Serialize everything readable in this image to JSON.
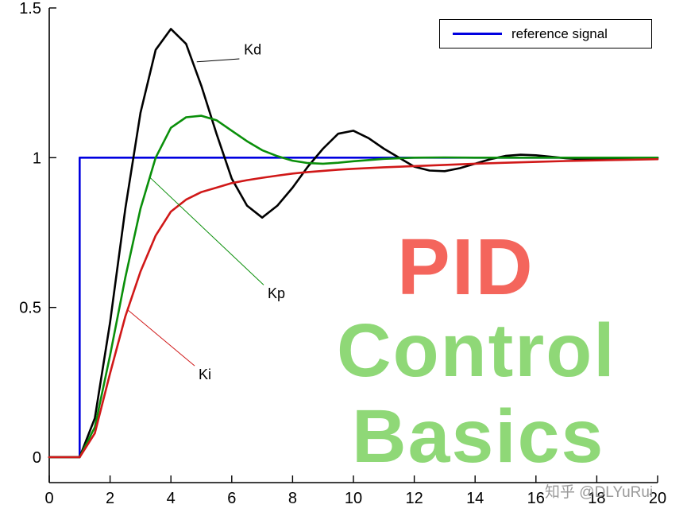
{
  "legend": {
    "label": "reference signal",
    "line_color": "#0000e0"
  },
  "overlay": {
    "line1": "PID",
    "line2": "Control",
    "line3": "Basics",
    "pid_color": "#f4655c",
    "green_color": "#8fd877"
  },
  "watermark": "知乎 @DLYuRui",
  "chart_data": {
    "type": "line",
    "title": "",
    "xlabel": "",
    "ylabel": "",
    "xlim": [
      0,
      20
    ],
    "ylim": [
      -0.085,
      1.5
    ],
    "x_ticks": [
      0,
      2,
      4,
      6,
      8,
      10,
      12,
      14,
      16,
      18,
      20
    ],
    "y_ticks": [
      0,
      0.5,
      1,
      1.5
    ],
    "grid": false,
    "legend_position": "top-right",
    "series": [
      {
        "name": "reference-signal",
        "color": "#0000e0",
        "width": 2.6,
        "points": [
          [
            0,
            0
          ],
          [
            1,
            0
          ],
          [
            1,
            1
          ],
          [
            20,
            1
          ]
        ]
      },
      {
        "name": "Kd",
        "color": "#000000",
        "width": 2.6,
        "points": [
          [
            0,
            0
          ],
          [
            1,
            0
          ],
          [
            1.5,
            0.13
          ],
          [
            2,
            0.45
          ],
          [
            2.5,
            0.83
          ],
          [
            3,
            1.15
          ],
          [
            3.5,
            1.36
          ],
          [
            4,
            1.43
          ],
          [
            4.5,
            1.38
          ],
          [
            5,
            1.24
          ],
          [
            5.5,
            1.08
          ],
          [
            6,
            0.93
          ],
          [
            6.5,
            0.84
          ],
          [
            7,
            0.8
          ],
          [
            7.5,
            0.84
          ],
          [
            8,
            0.9
          ],
          [
            8.5,
            0.97
          ],
          [
            9,
            1.03
          ],
          [
            9.5,
            1.08
          ],
          [
            10,
            1.09
          ],
          [
            10.5,
            1.065
          ],
          [
            11,
            1.03
          ],
          [
            11.5,
            1.0
          ],
          [
            12,
            0.97
          ],
          [
            12.5,
            0.957
          ],
          [
            13,
            0.955
          ],
          [
            13.5,
            0.965
          ],
          [
            14,
            0.98
          ],
          [
            14.5,
            0.995
          ],
          [
            15,
            1.006
          ],
          [
            15.5,
            1.01
          ],
          [
            16,
            1.008
          ],
          [
            16.5,
            1.003
          ],
          [
            17,
            0.998
          ],
          [
            17.5,
            0.995
          ],
          [
            18,
            0.994
          ],
          [
            18.5,
            0.995
          ],
          [
            19,
            0.997
          ],
          [
            19.5,
            0.998
          ],
          [
            20,
            0.999
          ]
        ]
      },
      {
        "name": "Kp",
        "color": "#0a8f0a",
        "width": 2.6,
        "points": [
          [
            0,
            0
          ],
          [
            1,
            0
          ],
          [
            1.5,
            0.1
          ],
          [
            2,
            0.34
          ],
          [
            2.5,
            0.6
          ],
          [
            3,
            0.83
          ],
          [
            3.5,
            1.0
          ],
          [
            4,
            1.1
          ],
          [
            4.5,
            1.135
          ],
          [
            5,
            1.14
          ],
          [
            5.5,
            1.125
          ],
          [
            6,
            1.09
          ],
          [
            6.5,
            1.055
          ],
          [
            7,
            1.025
          ],
          [
            7.5,
            1.005
          ],
          [
            8,
            0.99
          ],
          [
            8.5,
            0.982
          ],
          [
            9,
            0.98
          ],
          [
            9.5,
            0.983
          ],
          [
            10,
            0.988
          ],
          [
            10.5,
            0.992
          ],
          [
            11,
            0.996
          ],
          [
            11.5,
            0.998
          ],
          [
            12,
            1.0
          ],
          [
            13,
            1.001
          ],
          [
            14,
            1.0
          ],
          [
            15,
            1.0
          ],
          [
            16,
            1.0
          ],
          [
            17,
            1.0
          ],
          [
            18,
            1.0
          ],
          [
            19,
            1.0
          ],
          [
            20,
            1.0
          ]
        ]
      },
      {
        "name": "Ki",
        "color": "#d01818",
        "width": 2.6,
        "points": [
          [
            0,
            0
          ],
          [
            1,
            0
          ],
          [
            1.5,
            0.08
          ],
          [
            2,
            0.28
          ],
          [
            2.5,
            0.47
          ],
          [
            3,
            0.62
          ],
          [
            3.5,
            0.74
          ],
          [
            4,
            0.82
          ],
          [
            4.5,
            0.86
          ],
          [
            5,
            0.885
          ],
          [
            5.5,
            0.9
          ],
          [
            6,
            0.915
          ],
          [
            6.5,
            0.925
          ],
          [
            7,
            0.933
          ],
          [
            7.5,
            0.94
          ],
          [
            8,
            0.947
          ],
          [
            8.5,
            0.952
          ],
          [
            9,
            0.956
          ],
          [
            9.5,
            0.96
          ],
          [
            10,
            0.963
          ],
          [
            11,
            0.968
          ],
          [
            12,
            0.972
          ],
          [
            13,
            0.976
          ],
          [
            14,
            0.98
          ],
          [
            15,
            0.983
          ],
          [
            16,
            0.986
          ],
          [
            17,
            0.989
          ],
          [
            18,
            0.991
          ],
          [
            19,
            0.993
          ],
          [
            20,
            0.995
          ]
        ]
      }
    ],
    "annotations": [
      {
        "label": "Kd",
        "color": "#000000",
        "text": [
          6.4,
          1.345
        ],
        "from": [
          6.25,
          1.33
        ],
        "to": [
          4.85,
          1.32
        ]
      },
      {
        "label": "Kp",
        "color": "#0a8f0a",
        "text": [
          7.18,
          0.531
        ],
        "from": [
          7.05,
          0.575
        ],
        "to": [
          3.3,
          0.935
        ]
      },
      {
        "label": "Ki",
        "color": "#d01818",
        "text": [
          4.91,
          0.26
        ],
        "from": [
          4.78,
          0.305
        ],
        "to": [
          2.6,
          0.49
        ]
      }
    ]
  }
}
